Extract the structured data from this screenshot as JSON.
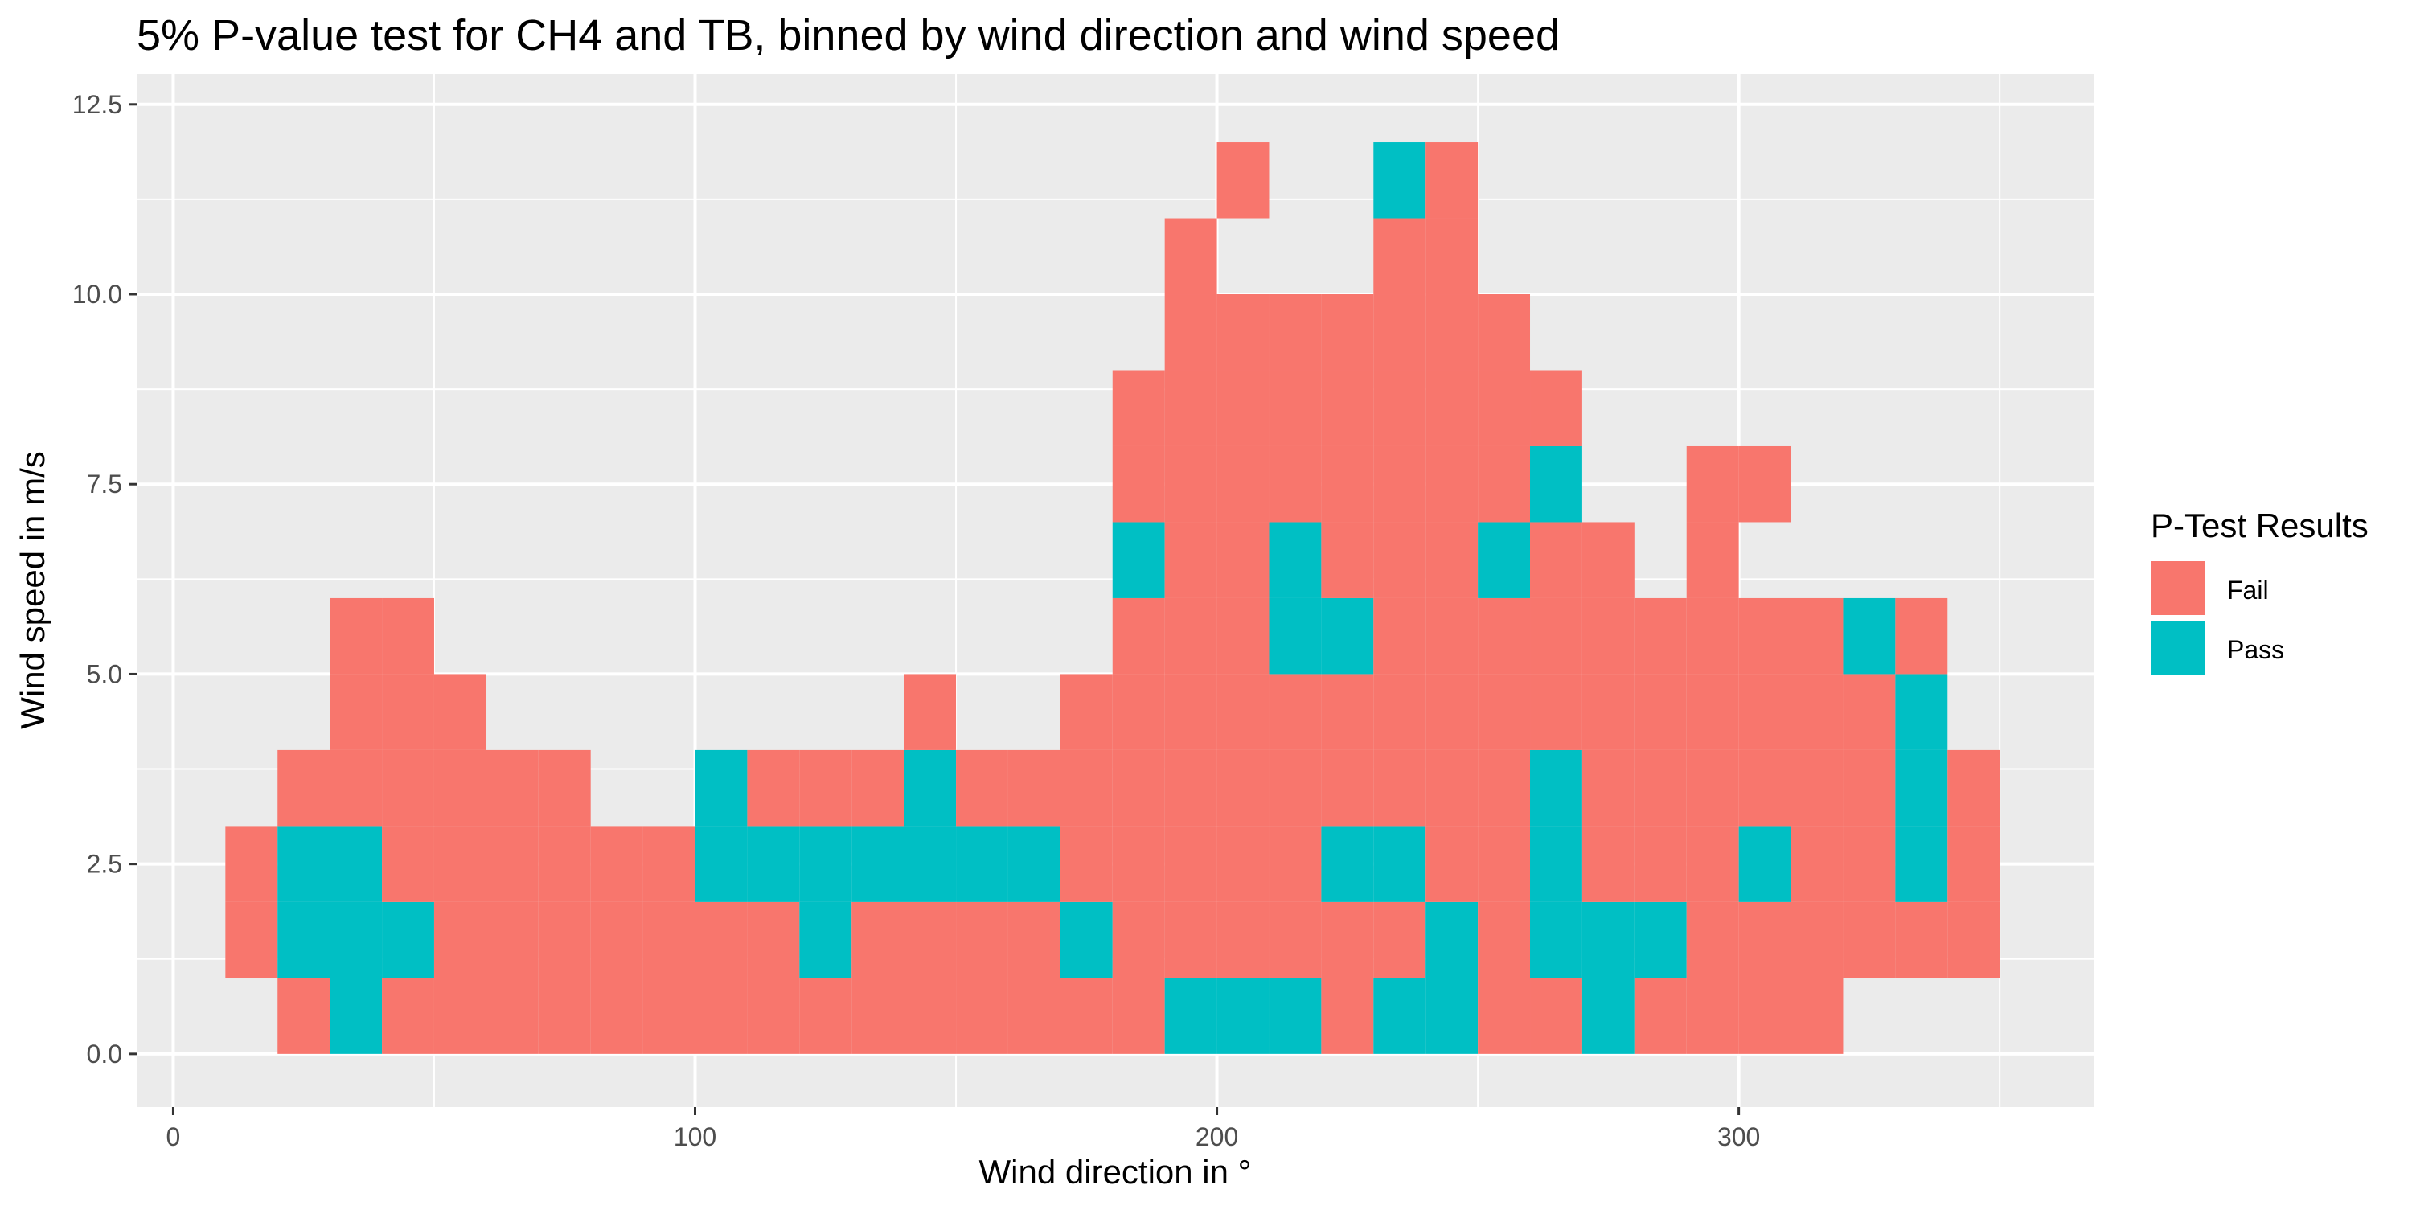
{
  "chart_data": {
    "type": "heatmap",
    "title": "5% P-value test for CH4 and TB, binned by wind direction and wind speed",
    "xlabel": "Wind direction in °",
    "ylabel": "Wind speed in m/s",
    "xlim": [
      -7,
      368
    ],
    "ylim": [
      -0.7,
      12.9
    ],
    "x_ticks": [
      0,
      100,
      200,
      300
    ],
    "x_tick_labels": [
      "0",
      "100",
      "200",
      "300"
    ],
    "y_ticks": [
      0,
      2.5,
      5,
      7.5,
      10,
      12.5
    ],
    "y_tick_labels": [
      "0.0",
      "2.5",
      "5.0",
      "7.5",
      "10.0",
      "12.5"
    ],
    "bin_width_x": 10,
    "bin_height_y": 1,
    "grid": true,
    "legend": {
      "title": "P-Test Results",
      "placement": "right",
      "entries": [
        {
          "label": "Fail",
          "color": "#F8766D"
        },
        {
          "label": "Pass",
          "color": "#00BFC4"
        }
      ]
    },
    "colors": {
      "Fail": "#F8766D",
      "Pass": "#00BFC4",
      "panel": "#EBEBEB",
      "grid_major": "#FFFFFF"
    },
    "rows": [
      {
        "y_bin": [
          0,
          1
        ],
        "cells": [
          [
            20,
            "F"
          ],
          [
            30,
            "P"
          ],
          [
            40,
            "F"
          ],
          [
            50,
            "F"
          ],
          [
            60,
            "F"
          ],
          [
            70,
            "F"
          ],
          [
            80,
            "F"
          ],
          [
            90,
            "F"
          ],
          [
            100,
            "F"
          ],
          [
            110,
            "F"
          ],
          [
            120,
            "F"
          ],
          [
            130,
            "F"
          ],
          [
            140,
            "F"
          ],
          [
            150,
            "F"
          ],
          [
            160,
            "F"
          ],
          [
            170,
            "F"
          ],
          [
            180,
            "F"
          ],
          [
            190,
            "P"
          ],
          [
            200,
            "P"
          ],
          [
            210,
            "P"
          ],
          [
            220,
            "F"
          ],
          [
            230,
            "P"
          ],
          [
            240,
            "P"
          ],
          [
            250,
            "F"
          ],
          [
            260,
            "F"
          ],
          [
            270,
            "P"
          ],
          [
            280,
            "F"
          ],
          [
            290,
            "F"
          ],
          [
            300,
            "F"
          ],
          [
            310,
            "F"
          ]
        ]
      },
      {
        "y_bin": [
          1,
          2
        ],
        "cells": [
          [
            10,
            "F"
          ],
          [
            20,
            "P"
          ],
          [
            30,
            "P"
          ],
          [
            40,
            "P"
          ],
          [
            50,
            "F"
          ],
          [
            60,
            "F"
          ],
          [
            70,
            "F"
          ],
          [
            80,
            "F"
          ],
          [
            90,
            "F"
          ],
          [
            100,
            "F"
          ],
          [
            110,
            "F"
          ],
          [
            120,
            "P"
          ],
          [
            130,
            "F"
          ],
          [
            140,
            "F"
          ],
          [
            150,
            "F"
          ],
          [
            160,
            "F"
          ],
          [
            170,
            "P"
          ],
          [
            180,
            "F"
          ],
          [
            190,
            "F"
          ],
          [
            200,
            "F"
          ],
          [
            210,
            "F"
          ],
          [
            220,
            "F"
          ],
          [
            230,
            "F"
          ],
          [
            240,
            "P"
          ],
          [
            250,
            "F"
          ],
          [
            260,
            "P"
          ],
          [
            270,
            "P"
          ],
          [
            280,
            "P"
          ],
          [
            290,
            "F"
          ],
          [
            300,
            "F"
          ],
          [
            310,
            "F"
          ],
          [
            320,
            "F"
          ],
          [
            330,
            "F"
          ],
          [
            340,
            "F"
          ]
        ]
      },
      {
        "y_bin": [
          2,
          3
        ],
        "cells": [
          [
            10,
            "F"
          ],
          [
            20,
            "P"
          ],
          [
            30,
            "P"
          ],
          [
            40,
            "F"
          ],
          [
            50,
            "F"
          ],
          [
            60,
            "F"
          ],
          [
            70,
            "F"
          ],
          [
            80,
            "F"
          ],
          [
            90,
            "F"
          ],
          [
            100,
            "P"
          ],
          [
            110,
            "P"
          ],
          [
            120,
            "P"
          ],
          [
            130,
            "P"
          ],
          [
            140,
            "P"
          ],
          [
            150,
            "P"
          ],
          [
            160,
            "P"
          ],
          [
            170,
            "F"
          ],
          [
            180,
            "F"
          ],
          [
            190,
            "F"
          ],
          [
            200,
            "F"
          ],
          [
            210,
            "F"
          ],
          [
            220,
            "P"
          ],
          [
            230,
            "P"
          ],
          [
            240,
            "F"
          ],
          [
            250,
            "F"
          ],
          [
            260,
            "P"
          ],
          [
            270,
            "F"
          ],
          [
            280,
            "F"
          ],
          [
            290,
            "F"
          ],
          [
            300,
            "P"
          ],
          [
            310,
            "F"
          ],
          [
            320,
            "F"
          ],
          [
            330,
            "P"
          ],
          [
            340,
            "F"
          ]
        ]
      },
      {
        "y_bin": [
          3,
          4
        ],
        "cells": [
          [
            20,
            "F"
          ],
          [
            30,
            "F"
          ],
          [
            40,
            "F"
          ],
          [
            50,
            "F"
          ],
          [
            60,
            "F"
          ],
          [
            70,
            "F"
          ],
          [
            100,
            "P"
          ],
          [
            110,
            "F"
          ],
          [
            120,
            "F"
          ],
          [
            130,
            "F"
          ],
          [
            140,
            "P"
          ],
          [
            150,
            "F"
          ],
          [
            160,
            "F"
          ],
          [
            170,
            "F"
          ],
          [
            180,
            "F"
          ],
          [
            190,
            "F"
          ],
          [
            200,
            "F"
          ],
          [
            210,
            "F"
          ],
          [
            220,
            "F"
          ],
          [
            230,
            "F"
          ],
          [
            240,
            "F"
          ],
          [
            250,
            "F"
          ],
          [
            260,
            "P"
          ],
          [
            270,
            "F"
          ],
          [
            280,
            "F"
          ],
          [
            290,
            "F"
          ],
          [
            300,
            "F"
          ],
          [
            310,
            "F"
          ],
          [
            320,
            "F"
          ],
          [
            330,
            "P"
          ],
          [
            340,
            "F"
          ]
        ]
      },
      {
        "y_bin": [
          4,
          5
        ],
        "cells": [
          [
            30,
            "F"
          ],
          [
            40,
            "F"
          ],
          [
            50,
            "F"
          ],
          [
            140,
            "F"
          ],
          [
            170,
            "F"
          ],
          [
            180,
            "F"
          ],
          [
            190,
            "F"
          ],
          [
            200,
            "F"
          ],
          [
            210,
            "F"
          ],
          [
            220,
            "F"
          ],
          [
            230,
            "F"
          ],
          [
            240,
            "F"
          ],
          [
            250,
            "F"
          ],
          [
            260,
            "F"
          ],
          [
            270,
            "F"
          ],
          [
            280,
            "F"
          ],
          [
            290,
            "F"
          ],
          [
            300,
            "F"
          ],
          [
            310,
            "F"
          ],
          [
            320,
            "F"
          ],
          [
            330,
            "P"
          ]
        ]
      },
      {
        "y_bin": [
          5,
          6
        ],
        "cells": [
          [
            30,
            "F"
          ],
          [
            40,
            "F"
          ],
          [
            180,
            "F"
          ],
          [
            190,
            "F"
          ],
          [
            200,
            "F"
          ],
          [
            210,
            "P"
          ],
          [
            220,
            "P"
          ],
          [
            230,
            "F"
          ],
          [
            240,
            "F"
          ],
          [
            250,
            "F"
          ],
          [
            260,
            "F"
          ],
          [
            270,
            "F"
          ],
          [
            280,
            "F"
          ],
          [
            290,
            "F"
          ],
          [
            300,
            "F"
          ],
          [
            310,
            "F"
          ],
          [
            320,
            "P"
          ],
          [
            330,
            "F"
          ]
        ]
      },
      {
        "y_bin": [
          6,
          7
        ],
        "cells": [
          [
            180,
            "P"
          ],
          [
            190,
            "F"
          ],
          [
            200,
            "F"
          ],
          [
            210,
            "P"
          ],
          [
            220,
            "F"
          ],
          [
            230,
            "F"
          ],
          [
            240,
            "F"
          ],
          [
            250,
            "P"
          ],
          [
            260,
            "F"
          ],
          [
            270,
            "F"
          ],
          [
            290,
            "F"
          ]
        ]
      },
      {
        "y_bin": [
          7,
          8
        ],
        "cells": [
          [
            180,
            "F"
          ],
          [
            190,
            "F"
          ],
          [
            200,
            "F"
          ],
          [
            210,
            "F"
          ],
          [
            220,
            "F"
          ],
          [
            230,
            "F"
          ],
          [
            240,
            "F"
          ],
          [
            250,
            "F"
          ],
          [
            260,
            "P"
          ],
          [
            290,
            "F"
          ],
          [
            300,
            "F"
          ]
        ]
      },
      {
        "y_bin": [
          8,
          9
        ],
        "cells": [
          [
            180,
            "F"
          ],
          [
            190,
            "F"
          ],
          [
            200,
            "F"
          ],
          [
            210,
            "F"
          ],
          [
            220,
            "F"
          ],
          [
            230,
            "F"
          ],
          [
            240,
            "F"
          ],
          [
            250,
            "F"
          ],
          [
            260,
            "F"
          ]
        ]
      },
      {
        "y_bin": [
          9,
          10
        ],
        "cells": [
          [
            190,
            "F"
          ],
          [
            200,
            "F"
          ],
          [
            210,
            "F"
          ],
          [
            220,
            "F"
          ],
          [
            230,
            "F"
          ],
          [
            240,
            "F"
          ],
          [
            250,
            "F"
          ]
        ]
      },
      {
        "y_bin": [
          10,
          11
        ],
        "cells": [
          [
            190,
            "F"
          ],
          [
            230,
            "F"
          ],
          [
            240,
            "F"
          ]
        ]
      },
      {
        "y_bin": [
          11,
          12
        ],
        "cells": [
          [
            200,
            "F"
          ],
          [
            230,
            "P"
          ],
          [
            240,
            "F"
          ]
        ]
      }
    ]
  }
}
